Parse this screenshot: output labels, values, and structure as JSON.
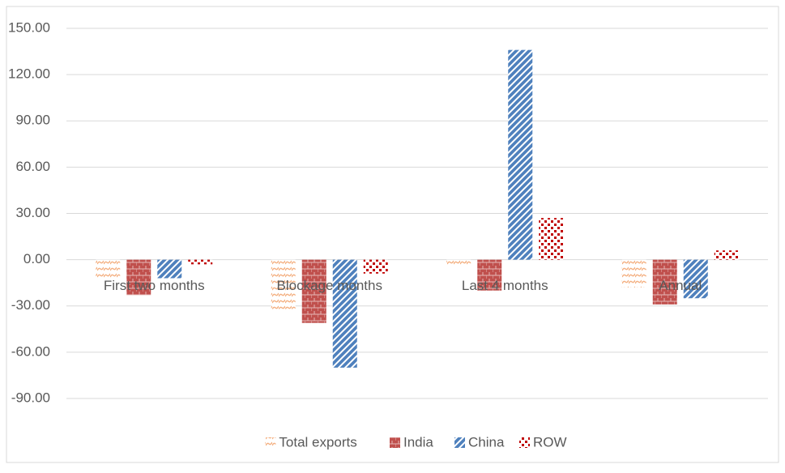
{
  "chart_data": {
    "type": "bar",
    "categories": [
      "First two months",
      "Blockage months",
      "Last 4 months",
      "Annual"
    ],
    "series": [
      {
        "name": "Total exports",
        "color": "#f4b183",
        "values": [
          -13,
          -32,
          -4,
          -18
        ]
      },
      {
        "name": "India",
        "color": "#c0504d",
        "values": [
          -23,
          -41,
          -20,
          -29
        ]
      },
      {
        "name": "China",
        "color": "#4f81bd",
        "values": [
          -12,
          -70,
          136,
          -25
        ]
      },
      {
        "name": "ROW",
        "color": "#c00000",
        "values": [
          -3,
          -9,
          27,
          6
        ]
      }
    ],
    "ylim": [
      -90,
      150
    ],
    "yticks": [
      {
        "value": -90,
        "label": "-90.00"
      },
      {
        "value": -60,
        "label": "-60.00"
      },
      {
        "value": -30,
        "label": "-30.00"
      },
      {
        "value": 0,
        "label": "0.00"
      },
      {
        "value": 30,
        "label": "30.00"
      },
      {
        "value": 60,
        "label": "60.00"
      },
      {
        "value": 90,
        "label": "90.00"
      },
      {
        "value": 120,
        "label": "120.00"
      },
      {
        "value": 150,
        "label": "150.00"
      }
    ],
    "grid": true,
    "legend": "bottom"
  }
}
